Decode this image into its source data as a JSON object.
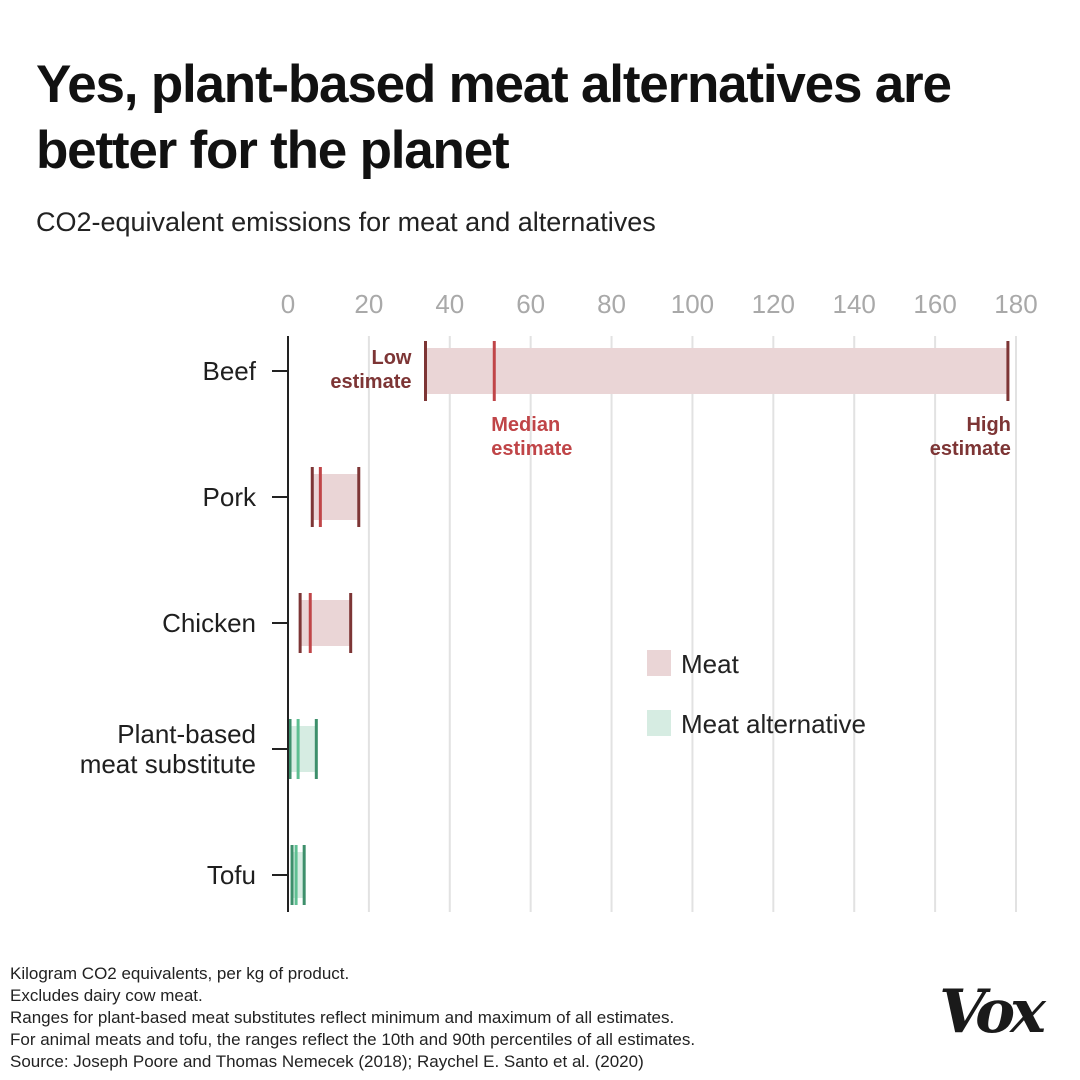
{
  "header": {
    "title": "Yes, plant-based meat alternatives are better for the planet",
    "subtitle": "CO2-equivalent emissions for meat and alternatives"
  },
  "chart_data": {
    "type": "range",
    "title": "Yes, plant-based meat alternatives are better for the planet",
    "subtitle": "CO2-equivalent emissions for meat and alternatives",
    "xlim": [
      0,
      180
    ],
    "x_ticks": [
      0,
      20,
      40,
      60,
      80,
      100,
      120,
      140,
      160,
      180
    ],
    "grid": true,
    "categories": [
      {
        "label_lines": [
          "Beef"
        ],
        "group": "Meat",
        "low": 34,
        "median": 51,
        "high": 178
      },
      {
        "label_lines": [
          "Pork"
        ],
        "group": "Meat",
        "low": 6,
        "median": 8,
        "high": 17.5
      },
      {
        "label_lines": [
          "Chicken"
        ],
        "group": "Meat",
        "low": 3,
        "median": 5.5,
        "high": 15.5
      },
      {
        "label_lines": [
          "Plant-based",
          "meat substitute"
        ],
        "group": "Meat alternative",
        "low": 0.5,
        "median": 2.5,
        "high": 7
      },
      {
        "label_lines": [
          "Tofu"
        ],
        "group": "Meat alternative",
        "low": 1,
        "median": 2,
        "high": 4
      }
    ],
    "annotations": {
      "low": [
        "Low",
        "estimate"
      ],
      "median": [
        "Median",
        "estimate"
      ],
      "high": [
        "High",
        "estimate"
      ]
    },
    "legend": {
      "placement": "center-right",
      "items": [
        {
          "label": "Meat",
          "color": "#ead5d6"
        },
        {
          "label": "Meat alternative",
          "color": "#d6ece2"
        }
      ]
    },
    "colors": {
      "meat_bar": "#ead5d6",
      "meat_line": "#7d3535",
      "meat_median": "#c04548",
      "alt_bar": "#d6ece2",
      "alt_line": "#3d8f6b",
      "alt_median": "#5fbf92",
      "grid": "#e2e2e2",
      "axis": "#222222"
    }
  },
  "notes": [
    "Kilogram CO2 equivalents, per kg of product.",
    "Excludes dairy cow meat.",
    "Ranges for plant-based meat substitutes reflect minimum and maximum of all estimates.",
    "For animal meats and tofu, the ranges reflect the 10th and 90th percentiles of all estimates.",
    "Source: Joseph Poore and Thomas Nemecek (2018); Raychel E. Santo et al. (2020)"
  ],
  "brand": {
    "logo_text": "Vox"
  }
}
